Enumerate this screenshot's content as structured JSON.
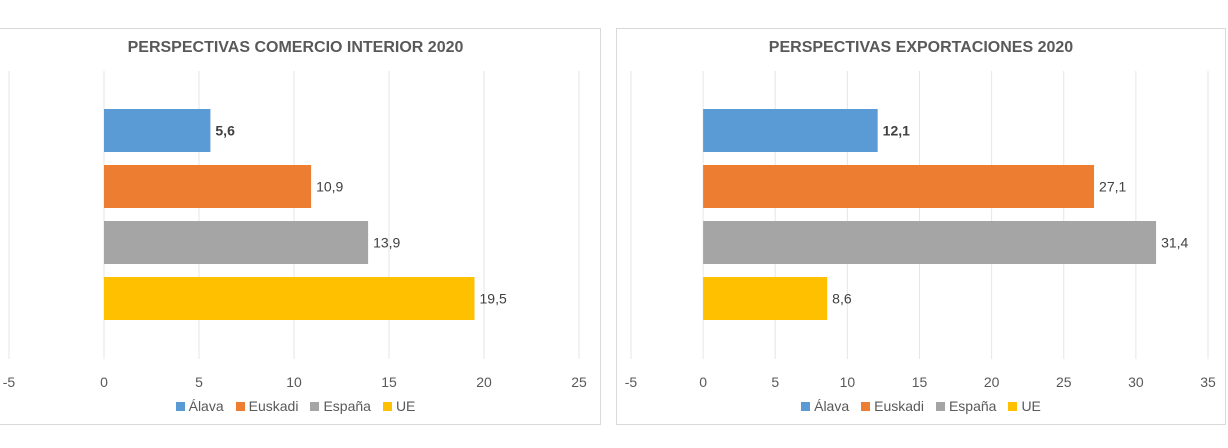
{
  "chart_data": [
    {
      "type": "bar",
      "orientation": "horizontal",
      "title": "PERSPECTIVAS COMERCIO INTERIOR 2020",
      "categories": [
        "Álava",
        "Euskadi",
        "España",
        "UE"
      ],
      "values": [
        5.6,
        10.9,
        13.9,
        19.5
      ],
      "value_labels": [
        "5,6",
        "10,9",
        "13,9",
        "19,5"
      ],
      "bold_labels": [
        true,
        false,
        false,
        false
      ],
      "colors": [
        "#5b9bd5",
        "#ed7d31",
        "#a5a5a5",
        "#ffc000"
      ],
      "xlim": [
        -5,
        25
      ],
      "xticks": [
        -5,
        0,
        5,
        10,
        15,
        20,
        25
      ],
      "xtick_labels": [
        "-5",
        "0",
        "5",
        "10",
        "15",
        "20",
        "25"
      ],
      "grid": true,
      "legend": "bottom"
    },
    {
      "type": "bar",
      "orientation": "horizontal",
      "title": "PERSPECTIVAS EXPORTACIONES 2020",
      "categories": [
        "Álava",
        "Euskadi",
        "España",
        "UE"
      ],
      "values": [
        12.1,
        27.1,
        31.4,
        8.6
      ],
      "value_labels": [
        "12,1",
        "27,1",
        "31,4",
        "8,6"
      ],
      "bold_labels": [
        true,
        false,
        false,
        false
      ],
      "colors": [
        "#5b9bd5",
        "#ed7d31",
        "#a5a5a5",
        "#ffc000"
      ],
      "xlim": [
        -5,
        35
      ],
      "xticks": [
        -5,
        0,
        5,
        10,
        15,
        20,
        25,
        30,
        35
      ],
      "xtick_labels": [
        "-5",
        "0",
        "5",
        "10",
        "15",
        "20",
        "25",
        "30",
        "35"
      ],
      "grid": true,
      "legend": "bottom"
    }
  ]
}
